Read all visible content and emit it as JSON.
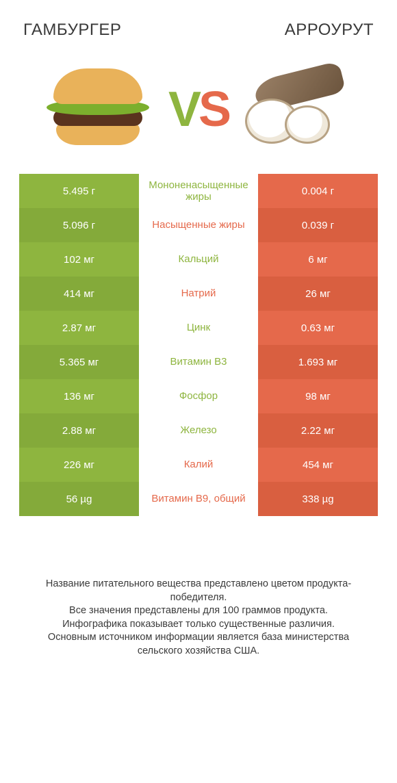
{
  "header": {
    "left_title": "ГАМБУРГЕР",
    "right_title": "АРРОУРУТ",
    "vs_v": "V",
    "vs_s": "S"
  },
  "colors": {
    "green": "#8eb53f",
    "orange": "#e5694b"
  },
  "table": {
    "type": "comparison-table",
    "rows": [
      {
        "left": "5.495 г",
        "label": "Мононенасыщенные жиры",
        "right": "0.004 г",
        "winner": "left"
      },
      {
        "left": "5.096 г",
        "label": "Насыщенные жиры",
        "right": "0.039 г",
        "winner": "right"
      },
      {
        "left": "102 мг",
        "label": "Кальций",
        "right": "6 мг",
        "winner": "left"
      },
      {
        "left": "414 мг",
        "label": "Натрий",
        "right": "26 мг",
        "winner": "right"
      },
      {
        "left": "2.87 мг",
        "label": "Цинк",
        "right": "0.63 мг",
        "winner": "left"
      },
      {
        "left": "5.365 мг",
        "label": "Витамин B3",
        "right": "1.693 мг",
        "winner": "left"
      },
      {
        "left": "136 мг",
        "label": "Фосфор",
        "right": "98 мг",
        "winner": "left"
      },
      {
        "left": "2.88 мг",
        "label": "Железо",
        "right": "2.22 мг",
        "winner": "left"
      },
      {
        "left": "226 мг",
        "label": "Калий",
        "right": "454 мг",
        "winner": "right"
      },
      {
        "left": "56 µg",
        "label": "Витамин B9, общий",
        "right": "338 µg",
        "winner": "right"
      }
    ]
  },
  "footnote": {
    "l1": "Название питательного вещества представлено цветом продукта-победителя.",
    "l2": "Все значения представлены для 100 граммов продукта.",
    "l3": "Инфографика показывает только существенные различия.",
    "l4": "Основным источником информации является база министерства сельского хозяйства США."
  }
}
